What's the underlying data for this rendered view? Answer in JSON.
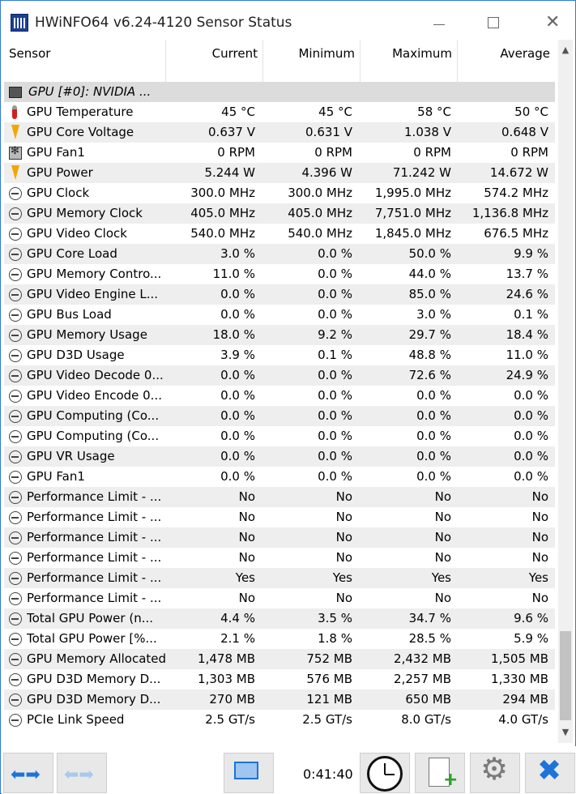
{
  "window": {
    "title": "HWiNFO64 v6.24-4120 Sensor Status",
    "minimize_label": "—",
    "maximize_label": "☐",
    "close_label": "✕"
  },
  "columns": {
    "sensor": "Sensor",
    "current": "Current",
    "minimum": "Minimum",
    "maximum": "Maximum",
    "average": "Average"
  },
  "rows": [
    {
      "icon": "chip",
      "name": "GPU [#0]: NVIDIA ...",
      "current": "",
      "minimum": "",
      "maximum": "",
      "average": "",
      "group": true
    },
    {
      "icon": "temp",
      "name": "GPU Temperature",
      "current": "45 °C",
      "minimum": "45 °C",
      "maximum": "58 °C",
      "average": "50 °C"
    },
    {
      "icon": "volt",
      "name": "GPU Core Voltage",
      "current": "0.637 V",
      "minimum": "0.631 V",
      "maximum": "1.038 V",
      "average": "0.648 V"
    },
    {
      "icon": "fan",
      "name": "GPU Fan1",
      "current": "0 RPM",
      "minimum": "0 RPM",
      "maximum": "0 RPM",
      "average": "0 RPM"
    },
    {
      "icon": "volt",
      "name": "GPU Power",
      "current": "5.244 W",
      "minimum": "4.396 W",
      "maximum": "71.242 W",
      "average": "14.672 W"
    },
    {
      "icon": "clock",
      "name": "GPU Clock",
      "current": "300.0 MHz",
      "minimum": "300.0 MHz",
      "maximum": "1,995.0 MHz",
      "average": "574.2 MHz"
    },
    {
      "icon": "clock",
      "name": "GPU Memory Clock",
      "current": "405.0 MHz",
      "minimum": "405.0 MHz",
      "maximum": "7,751.0 MHz",
      "average": "1,136.8 MHz"
    },
    {
      "icon": "clock",
      "name": "GPU Video Clock",
      "current": "540.0 MHz",
      "minimum": "540.0 MHz",
      "maximum": "1,845.0 MHz",
      "average": "676.5 MHz"
    },
    {
      "icon": "clock",
      "name": "GPU Core Load",
      "current": "3.0 %",
      "minimum": "0.0 %",
      "maximum": "50.0 %",
      "average": "9.9 %"
    },
    {
      "icon": "clock",
      "name": "GPU Memory Contro...",
      "current": "11.0 %",
      "minimum": "0.0 %",
      "maximum": "44.0 %",
      "average": "13.7 %"
    },
    {
      "icon": "clock",
      "name": "GPU Video Engine L...",
      "current": "0.0 %",
      "minimum": "0.0 %",
      "maximum": "85.0 %",
      "average": "24.6 %"
    },
    {
      "icon": "clock",
      "name": "GPU Bus Load",
      "current": "0.0 %",
      "minimum": "0.0 %",
      "maximum": "3.0 %",
      "average": "0.1 %"
    },
    {
      "icon": "clock",
      "name": "GPU Memory Usage",
      "current": "18.0 %",
      "minimum": "9.2 %",
      "maximum": "29.7 %",
      "average": "18.4 %"
    },
    {
      "icon": "clock",
      "name": "GPU D3D Usage",
      "current": "3.9 %",
      "minimum": "0.1 %",
      "maximum": "48.8 %",
      "average": "11.0 %"
    },
    {
      "icon": "clock",
      "name": "GPU Video Decode 0...",
      "current": "0.0 %",
      "minimum": "0.0 %",
      "maximum": "72.6 %",
      "average": "24.9 %"
    },
    {
      "icon": "clock",
      "name": "GPU Video Encode 0...",
      "current": "0.0 %",
      "minimum": "0.0 %",
      "maximum": "0.0 %",
      "average": "0.0 %"
    },
    {
      "icon": "clock",
      "name": "GPU Computing (Co...",
      "current": "0.0 %",
      "minimum": "0.0 %",
      "maximum": "0.0 %",
      "average": "0.0 %"
    },
    {
      "icon": "clock",
      "name": "GPU Computing (Co...",
      "current": "0.0 %",
      "minimum": "0.0 %",
      "maximum": "0.0 %",
      "average": "0.0 %"
    },
    {
      "icon": "clock",
      "name": "GPU VR Usage",
      "current": "0.0 %",
      "minimum": "0.0 %",
      "maximum": "0.0 %",
      "average": "0.0 %"
    },
    {
      "icon": "clock",
      "name": "GPU Fan1",
      "current": "0.0 %",
      "minimum": "0.0 %",
      "maximum": "0.0 %",
      "average": "0.0 %"
    },
    {
      "icon": "clock",
      "name": "Performance Limit - ...",
      "current": "No",
      "minimum": "No",
      "maximum": "No",
      "average": "No"
    },
    {
      "icon": "clock",
      "name": "Performance Limit - ...",
      "current": "No",
      "minimum": "No",
      "maximum": "No",
      "average": "No"
    },
    {
      "icon": "clock",
      "name": "Performance Limit - ...",
      "current": "No",
      "minimum": "No",
      "maximum": "No",
      "average": "No"
    },
    {
      "icon": "clock",
      "name": "Performance Limit - ...",
      "current": "No",
      "minimum": "No",
      "maximum": "No",
      "average": "No"
    },
    {
      "icon": "clock",
      "name": "Performance Limit - ...",
      "current": "Yes",
      "minimum": "Yes",
      "maximum": "Yes",
      "average": "Yes"
    },
    {
      "icon": "clock",
      "name": "Performance Limit - ...",
      "current": "No",
      "minimum": "No",
      "maximum": "No",
      "average": "No"
    },
    {
      "icon": "clock",
      "name": "Total GPU Power (n...",
      "current": "4.4 %",
      "minimum": "3.5 %",
      "maximum": "34.7 %",
      "average": "9.6 %"
    },
    {
      "icon": "clock",
      "name": "Total GPU Power [%...",
      "current": "2.1 %",
      "minimum": "1.8 %",
      "maximum": "28.5 %",
      "average": "5.9 %"
    },
    {
      "icon": "clock",
      "name": "GPU Memory Allocated",
      "current": "1,478 MB",
      "minimum": "752 MB",
      "maximum": "2,432 MB",
      "average": "1,505 MB"
    },
    {
      "icon": "clock",
      "name": "GPU D3D Memory D...",
      "current": "1,303 MB",
      "minimum": "576 MB",
      "maximum": "2,257 MB",
      "average": "1,330 MB"
    },
    {
      "icon": "clock",
      "name": "GPU D3D Memory D...",
      "current": "270 MB",
      "minimum": "121 MB",
      "maximum": "650 MB",
      "average": "294 MB"
    },
    {
      "icon": "clock",
      "name": "PCIe Link Speed",
      "current": "2.5 GT/s",
      "minimum": "2.5 GT/s",
      "maximum": "8.0 GT/s",
      "average": "4.0 GT/s"
    }
  ],
  "scrollbar": {
    "up": "▲",
    "down": "▼"
  },
  "toolbar": {
    "back_icon": "⬅➡",
    "forward_icon": "⬅➡",
    "elapsed_time": "0:41:40",
    "plus_glyph": "+",
    "gear_glyph": "⚙",
    "close_glyph": "✖"
  },
  "icons": {
    "app": "hwinfo-app-icon",
    "clock": "clock-icon",
    "report": "report-icon",
    "settings": "gear-icon",
    "network": "network-icon",
    "close": "close-icon"
  }
}
